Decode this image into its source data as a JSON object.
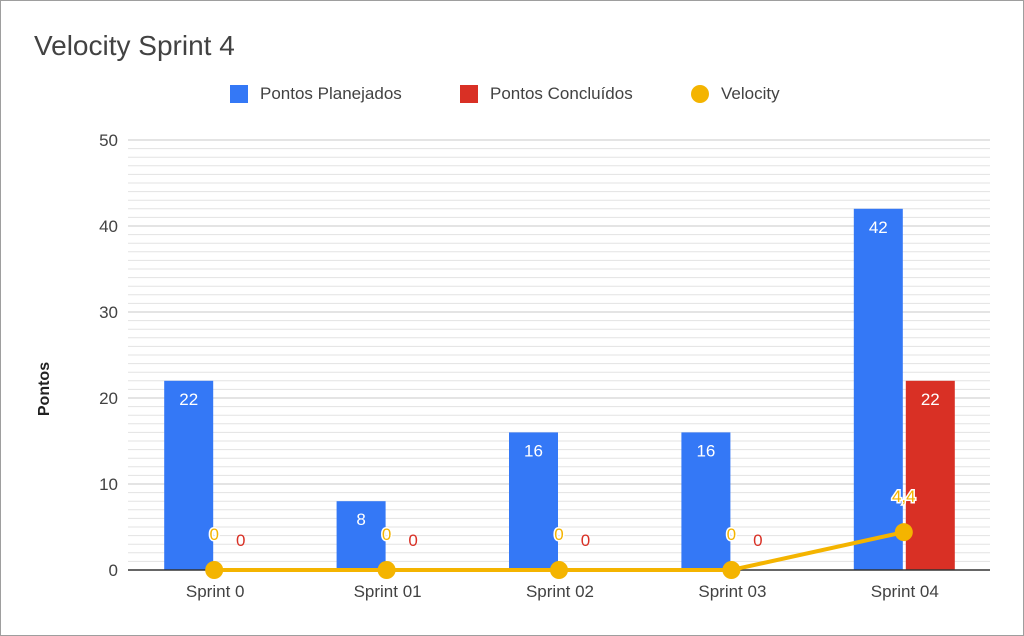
{
  "chart_data": {
    "type": "bar",
    "title": "Velocity Sprint 4",
    "ylabel": "Pontos",
    "xlabel": "",
    "ylim": [
      0,
      50
    ],
    "yticks": [
      0,
      10,
      20,
      30,
      40,
      50
    ],
    "categories": [
      "Sprint 0",
      "Sprint 01",
      "Sprint 02",
      "Sprint 03",
      "Sprint 04"
    ],
    "legend_position": "top",
    "grid": true,
    "series": [
      {
        "name": "Pontos Planejados",
        "kind": "bar",
        "color": "#3478f6",
        "values": [
          22,
          8,
          16,
          16,
          42
        ],
        "labels": [
          "22",
          "8",
          "16",
          "16",
          "42"
        ]
      },
      {
        "name": "Pontos Concluídos",
        "kind": "bar",
        "color": "#d93025",
        "values": [
          0,
          0,
          0,
          0,
          22
        ],
        "labels": [
          "0",
          "0",
          "0",
          "0",
          "22"
        ]
      },
      {
        "name": "Velocity",
        "kind": "line",
        "color": "#f4b400",
        "values": [
          0,
          0,
          0,
          0,
          4.4
        ],
        "labels": [
          "0",
          "0",
          "0",
          "0",
          "4,4"
        ]
      }
    ]
  }
}
